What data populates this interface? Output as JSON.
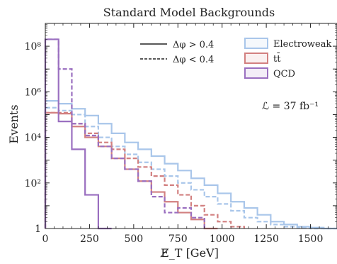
{
  "chart_data": {
    "type": "line",
    "title": "Standard Model Backgrounds",
    "xlabel": "E̸_T [GeV]",
    "ylabel": "Events",
    "xlim": [
      0,
      1650
    ],
    "ylim": [
      1,
      1000000000
    ],
    "yscale": "log",
    "xticks": [
      0,
      250,
      500,
      750,
      1000,
      1250,
      1500
    ],
    "xtick_labels": [
      "0",
      "250",
      "500",
      "750",
      "1000",
      "1250",
      "1500"
    ],
    "yticks": [
      1,
      100,
      10000,
      1000000,
      100000000
    ],
    "ytick_labels": [
      "1",
      "10²",
      "10⁴",
      "10⁶",
      "10⁸"
    ],
    "bin_edges": [
      0,
      75,
      150,
      225,
      300,
      375,
      450,
      525,
      600,
      675,
      750,
      825,
      900,
      975,
      1050,
      1125,
      1200,
      1275,
      1350,
      1425,
      1500,
      1575,
      1650
    ],
    "grid": false,
    "legend_position": "top-right",
    "annotation": "ℒ = 37 fb⁻¹",
    "legend_linestyles": [
      {
        "label": "Δφ > 0.4",
        "style": "solid"
      },
      {
        "label": "Δφ < 0.4",
        "style": "dashed"
      }
    ],
    "series": [
      {
        "name": "Electroweak",
        "color": "#a9c6ea",
        "style": "solid",
        "values": [
          400000,
          300000,
          180000,
          90000,
          40000,
          15000,
          6000,
          3000,
          1500,
          700,
          350,
          160,
          80,
          35,
          15,
          8,
          4,
          2,
          1.5,
          1.2,
          1.1,
          1
        ]
      },
      {
        "name": "Electroweak",
        "color": "#a9c6ea",
        "style": "dashed",
        "values": [
          200000,
          150000,
          100000,
          30000,
          10000,
          4000,
          1800,
          800,
          400,
          200,
          100,
          50,
          25,
          12,
          6,
          3,
          2,
          1.5,
          1.2,
          1.1,
          1,
          1
        ]
      },
      {
        "name": "tt̄",
        "color": "#d28080",
        "style": "solid",
        "values": [
          120000,
          110000,
          30000,
          10000,
          4000,
          1200,
          400,
          120,
          40,
          15,
          5,
          2.5,
          1
        ]
      },
      {
        "name": "tt̄",
        "color": "#d28080",
        "style": "dashed",
        "values": [
          120000,
          120000,
          40000,
          15000,
          6000,
          3000,
          1200,
          500,
          200,
          80,
          30,
          10,
          4,
          2,
          1.2
        ]
      },
      {
        "name": "QCD",
        "color": "#9a6fc0",
        "style": "solid",
        "values": [
          200000000,
          50000,
          3000,
          30,
          1
        ]
      },
      {
        "name": "QCD",
        "color": "#9a6fc0",
        "style": "dashed",
        "values": [
          200000000,
          10000000,
          40000,
          12000,
          4000,
          1200,
          400,
          120,
          25,
          5,
          8,
          3
        ]
      }
    ]
  }
}
